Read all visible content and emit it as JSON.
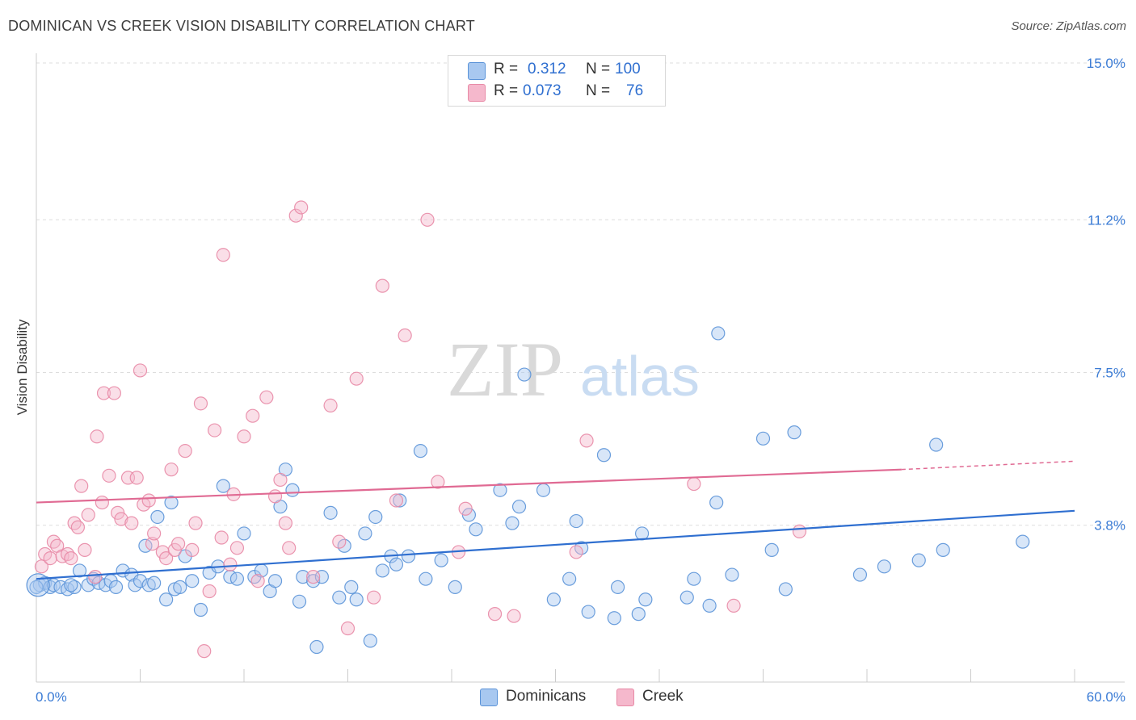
{
  "title": "DOMINICAN VS CREEK VISION DISABILITY CORRELATION CHART",
  "source": "Source: ZipAtlas.com",
  "watermark": {
    "zip": "ZIP",
    "atlas": "atlas"
  },
  "legend": {
    "rows": [
      {
        "r_label": "R =",
        "r_value": "0.312",
        "n_label": "N =",
        "n_value": "100",
        "color": "#a8c8f0"
      },
      {
        "r_label": "R =",
        "r_value": "0.073",
        "n_label": "N =",
        "n_value": "76",
        "color": "#f5b8cc"
      }
    ]
  },
  "bottom_legend": {
    "dominicans": "Dominicans",
    "creek": "Creek"
  },
  "colors": {
    "blue_fill": "#a8c8f0",
    "blue_stroke": "#5b93d8",
    "blue_line": "#2f6fd0",
    "pink_fill": "#f5b8cc",
    "pink_stroke": "#e88aa6",
    "pink_line": "#e06a93",
    "tick_label": "#3a7bd5",
    "grid": "#dddddd"
  },
  "chart_data": {
    "type": "scatter",
    "ylabel": "Vision Disability",
    "xlim": [
      0,
      60
    ],
    "ylim": [
      0,
      15
    ],
    "y_ticks": [
      {
        "value": 3.8,
        "label": "3.8%"
      },
      {
        "value": 7.5,
        "label": "7.5%"
      },
      {
        "value": 11.2,
        "label": "11.2%"
      },
      {
        "value": 15.0,
        "label": "15.0%"
      }
    ],
    "x_tick_labels": {
      "min": "0.0%",
      "max": "60.0%"
    },
    "grid": "horizontal dashed",
    "series": [
      {
        "name": "Dominicans",
        "trend": {
          "x0": 0,
          "y0": 2.5,
          "x1": 60,
          "y1": 4.15
        },
        "points": [
          [
            0.2,
            2.35
          ],
          [
            0.5,
            2.4
          ],
          [
            0.8,
            2.3
          ],
          [
            1.0,
            2.35
          ],
          [
            1.4,
            2.3
          ],
          [
            1.8,
            2.25
          ],
          [
            2.2,
            2.3
          ],
          [
            2.5,
            2.7
          ],
          [
            3.0,
            2.35
          ],
          [
            3.3,
            2.5
          ],
          [
            3.6,
            2.4
          ],
          [
            4.0,
            2.35
          ],
          [
            4.3,
            2.45
          ],
          [
            4.6,
            2.3
          ],
          [
            5.0,
            2.7
          ],
          [
            5.5,
            2.6
          ],
          [
            5.7,
            2.35
          ],
          [
            6.0,
            2.45
          ],
          [
            6.3,
            3.3
          ],
          [
            6.5,
            2.35
          ],
          [
            7.0,
            4.0
          ],
          [
            7.5,
            2.0
          ],
          [
            7.8,
            4.35
          ],
          [
            8.0,
            2.25
          ],
          [
            8.3,
            2.3
          ],
          [
            8.6,
            3.05
          ],
          [
            9.0,
            2.45
          ],
          [
            9.5,
            1.75
          ],
          [
            10.0,
            2.65
          ],
          [
            10.5,
            2.8
          ],
          [
            10.8,
            4.75
          ],
          [
            11.2,
            2.55
          ],
          [
            11.6,
            2.5
          ],
          [
            12.0,
            3.6
          ],
          [
            12.6,
            2.55
          ],
          [
            13.0,
            2.7
          ],
          [
            13.5,
            2.2
          ],
          [
            13.8,
            2.45
          ],
          [
            14.1,
            4.25
          ],
          [
            14.4,
            5.15
          ],
          [
            14.8,
            4.65
          ],
          [
            15.2,
            1.95
          ],
          [
            15.4,
            2.55
          ],
          [
            16.0,
            2.45
          ],
          [
            16.5,
            2.55
          ],
          [
            16.2,
            0.85
          ],
          [
            17.0,
            4.1
          ],
          [
            17.5,
            2.05
          ],
          [
            17.8,
            3.3
          ],
          [
            18.2,
            2.3
          ],
          [
            18.5,
            2.0
          ],
          [
            19.0,
            3.6
          ],
          [
            19.3,
            1.0
          ],
          [
            19.6,
            4.0
          ],
          [
            20.0,
            2.7
          ],
          [
            20.5,
            3.05
          ],
          [
            20.8,
            2.85
          ],
          [
            21.0,
            4.4
          ],
          [
            21.5,
            3.05
          ],
          [
            22.2,
            5.6
          ],
          [
            22.5,
            2.5
          ],
          [
            23.4,
            2.95
          ],
          [
            24.2,
            2.3
          ],
          [
            25.0,
            4.05
          ],
          [
            25.4,
            3.7
          ],
          [
            26.8,
            4.65
          ],
          [
            27.5,
            3.85
          ],
          [
            27.9,
            4.25
          ],
          [
            28.2,
            7.45
          ],
          [
            29.3,
            4.65
          ],
          [
            29.9,
            2.0
          ],
          [
            30.8,
            2.5
          ],
          [
            31.2,
            3.9
          ],
          [
            31.5,
            3.25
          ],
          [
            31.9,
            1.7
          ],
          [
            32.8,
            5.5
          ],
          [
            33.4,
            1.55
          ],
          [
            33.6,
            2.3
          ],
          [
            34.8,
            1.65
          ],
          [
            35.2,
            2.0
          ],
          [
            35.0,
            3.6
          ],
          [
            37.6,
            2.05
          ],
          [
            38.0,
            2.5
          ],
          [
            38.9,
            1.85
          ],
          [
            39.3,
            4.35
          ],
          [
            39.4,
            8.45
          ],
          [
            40.2,
            2.6
          ],
          [
            42.0,
            5.9
          ],
          [
            42.5,
            3.2
          ],
          [
            43.3,
            2.25
          ],
          [
            43.8,
            6.05
          ],
          [
            47.6,
            2.6
          ],
          [
            49.0,
            2.8
          ],
          [
            51.0,
            2.95
          ],
          [
            52.0,
            5.75
          ],
          [
            52.4,
            3.2
          ],
          [
            57.0,
            3.4
          ],
          [
            2.0,
            2.35
          ],
          [
            6.8,
            2.4
          ],
          [
            0.0,
            2.3
          ]
        ]
      },
      {
        "name": "Creek",
        "trend": {
          "x0": 0,
          "y0": 4.35,
          "x1": 50,
          "y1": 5.15,
          "dash_to_x": 60,
          "dash_to_y": 5.35
        },
        "points": [
          [
            0.3,
            2.8
          ],
          [
            0.5,
            3.1
          ],
          [
            0.8,
            3.0
          ],
          [
            1.0,
            3.4
          ],
          [
            1.2,
            3.3
          ],
          [
            1.5,
            3.05
          ],
          [
            1.8,
            3.1
          ],
          [
            2.0,
            3.0
          ],
          [
            2.2,
            3.85
          ],
          [
            2.4,
            3.75
          ],
          [
            2.6,
            4.75
          ],
          [
            2.8,
            3.2
          ],
          [
            3.0,
            4.05
          ],
          [
            3.4,
            2.55
          ],
          [
            3.5,
            5.95
          ],
          [
            3.8,
            4.35
          ],
          [
            3.9,
            7.0
          ],
          [
            4.2,
            5.0
          ],
          [
            4.5,
            7.0
          ],
          [
            4.7,
            4.1
          ],
          [
            4.9,
            3.95
          ],
          [
            5.3,
            4.95
          ],
          [
            5.5,
            3.85
          ],
          [
            5.8,
            4.95
          ],
          [
            6.2,
            4.3
          ],
          [
            6.0,
            7.55
          ],
          [
            6.5,
            4.4
          ],
          [
            6.7,
            3.35
          ],
          [
            6.8,
            3.6
          ],
          [
            7.3,
            3.15
          ],
          [
            7.5,
            3.0
          ],
          [
            7.8,
            5.15
          ],
          [
            8.0,
            3.2
          ],
          [
            8.2,
            3.35
          ],
          [
            8.6,
            5.6
          ],
          [
            9.0,
            3.2
          ],
          [
            9.2,
            3.85
          ],
          [
            9.5,
            6.75
          ],
          [
            9.7,
            0.75
          ],
          [
            10.0,
            2.2
          ],
          [
            10.3,
            6.1
          ],
          [
            10.7,
            3.5
          ],
          [
            10.8,
            10.35
          ],
          [
            11.2,
            2.85
          ],
          [
            11.4,
            4.55
          ],
          [
            11.6,
            3.25
          ],
          [
            12.0,
            5.95
          ],
          [
            12.5,
            6.45
          ],
          [
            12.8,
            2.45
          ],
          [
            13.3,
            6.9
          ],
          [
            13.8,
            4.5
          ],
          [
            14.1,
            4.9
          ],
          [
            14.4,
            3.85
          ],
          [
            14.6,
            3.25
          ],
          [
            15.0,
            11.3
          ],
          [
            15.3,
            11.5
          ],
          [
            16.0,
            2.55
          ],
          [
            17.0,
            6.7
          ],
          [
            17.5,
            3.4
          ],
          [
            18.0,
            1.3
          ],
          [
            18.5,
            7.35
          ],
          [
            19.5,
            2.05
          ],
          [
            20.0,
            9.6
          ],
          [
            20.8,
            4.4
          ],
          [
            21.3,
            8.4
          ],
          [
            22.6,
            11.2
          ],
          [
            23.2,
            4.85
          ],
          [
            24.4,
            3.15
          ],
          [
            24.8,
            4.2
          ],
          [
            26.5,
            1.65
          ],
          [
            27.6,
            1.6
          ],
          [
            31.2,
            3.15
          ],
          [
            31.8,
            5.85
          ],
          [
            38.0,
            4.8
          ],
          [
            40.3,
            1.85
          ],
          [
            44.1,
            3.65
          ]
        ]
      }
    ]
  }
}
